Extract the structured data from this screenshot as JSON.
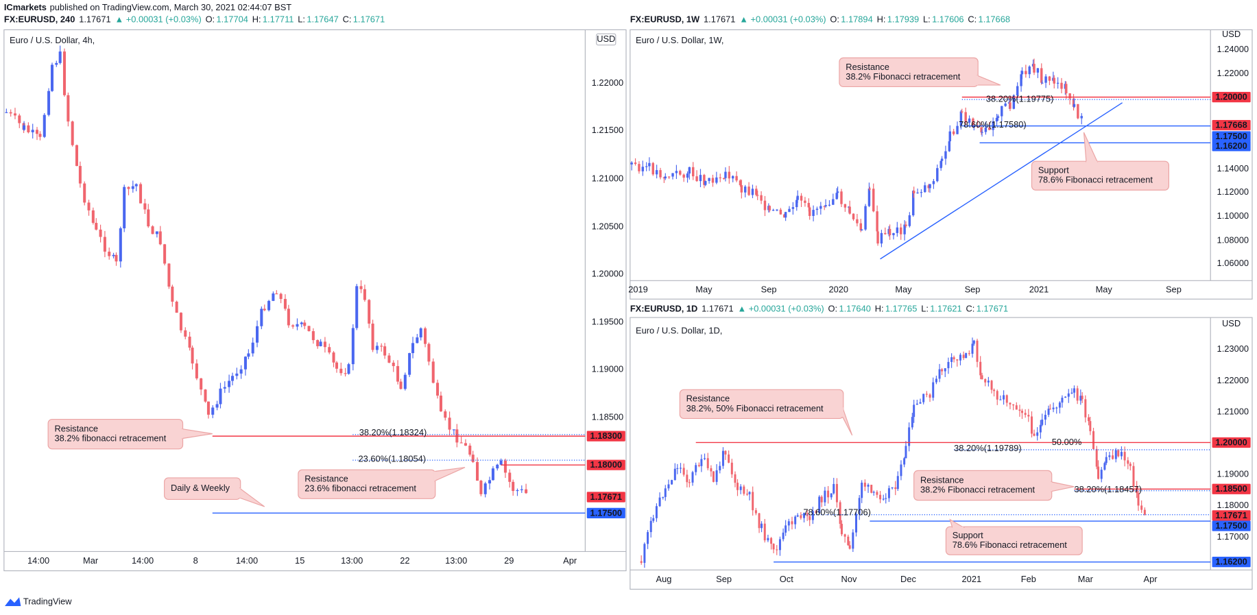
{
  "header": {
    "author": "ICmarkets",
    "text": "published on TradingView.com, March 30, 2021 02:44:07 BST"
  },
  "panels": [
    {
      "symbol": "FX:EURUSD, 240",
      "last": "1.17671",
      "change": "▲ +0.00031 (+0.03%)",
      "ohlc": [
        {
          "label": "O:",
          "value": "1.17704"
        },
        {
          "label": "H:",
          "value": "1.17711"
        },
        {
          "label": "L:",
          "value": "1.17647"
        },
        {
          "label": "C:",
          "value": "1.17671"
        }
      ],
      "title": "Euro / U.S. Dollar, 4h,",
      "currency": "USD",
      "price_ticks": [
        "1.22000",
        "1.21500",
        "1.21000",
        "1.20500",
        "1.20000",
        "1.19500",
        "1.19000",
        "1.18500"
      ],
      "time_ticks": [
        "14:00",
        "Mar",
        "14:00",
        "8",
        "14:00",
        "15",
        "13:00",
        "22",
        "13:00",
        "29",
        "Apr"
      ],
      "price_tags": [
        {
          "label": "1.18300",
          "color": "#f23645"
        },
        {
          "label": "1.18000",
          "color": "#f23645"
        },
        {
          "label": "1.17671",
          "color": "#f23645"
        },
        {
          "label": "1.17500",
          "color": "#2962ff"
        }
      ],
      "fib_labels": [
        "38.20%(1.18324)",
        "23.60%(1.18054)"
      ],
      "annotations": [
        {
          "lines": [
            "Resistance",
            "38.2% fibonacci retracement"
          ]
        },
        {
          "lines": [
            "Daily & Weekly"
          ]
        },
        {
          "lines": [
            "Resistance",
            "23.6% fibonacci retracement"
          ]
        }
      ]
    },
    {
      "symbol": "FX:EURUSD, 1W",
      "last": "1.17671",
      "change": "▲ +0.00031 (+0.03%)",
      "ohlc": [
        {
          "label": "O:",
          "value": "1.17894"
        },
        {
          "label": "H:",
          "value": "1.17939"
        },
        {
          "label": "L:",
          "value": "1.17606"
        },
        {
          "label": "C:",
          "value": "1.17668"
        }
      ],
      "title": "Euro / U.S. Dollar, 1W,",
      "currency": "USD",
      "price_ticks": [
        "1.24000",
        "1.22000",
        "1.14000",
        "1.12000",
        "1.10000",
        "1.08000",
        "1.06000"
      ],
      "time_ticks": [
        "2019",
        "May",
        "Sep",
        "2020",
        "May",
        "Sep",
        "2021",
        "May",
        "Sep"
      ],
      "price_tags": [
        {
          "label": "1.20000",
          "color": "#f23645"
        },
        {
          "label": "1.17668",
          "color": "#f23645"
        },
        {
          "label": "1.17500",
          "color": "#2962ff"
        },
        {
          "label": "1.16200",
          "color": "#2962ff"
        }
      ],
      "fib_labels": [
        "38.20%(1.19775)",
        "78.60%(1.17580)"
      ],
      "annotations": [
        {
          "lines": [
            "Resistance",
            "38.2% Fibonacci retracement"
          ]
        },
        {
          "lines": [
            "Support",
            "78.6% Fibonacci retracement"
          ]
        }
      ]
    },
    {
      "symbol": "FX:EURUSD, 1D",
      "last": "1.17671",
      "change": "▲ +0.00031 (+0.03%)",
      "ohlc": [
        {
          "label": "O:",
          "value": "1.17640"
        },
        {
          "label": "H:",
          "value": "1.17765"
        },
        {
          "label": "L:",
          "value": "1.17621"
        },
        {
          "label": "C:",
          "value": "1.17671"
        }
      ],
      "title": "Euro / U.S. Dollar, 1D,",
      "currency": "USD",
      "price_ticks": [
        "1.23000",
        "1.22000",
        "1.21000",
        "1.19000",
        "1.18000",
        "1.17000"
      ],
      "time_ticks": [
        "Aug",
        "Sep",
        "Oct",
        "Nov",
        "Dec",
        "2021",
        "Feb",
        "Mar",
        "Apr"
      ],
      "price_tags": [
        {
          "label": "1.20000",
          "color": "#f23645"
        },
        {
          "label": "1.18500",
          "color": "#f23645"
        },
        {
          "label": "1.17671",
          "color": "#f23645"
        },
        {
          "label": "1.17500",
          "color": "#2962ff"
        },
        {
          "label": "1.16200",
          "color": "#2962ff"
        }
      ],
      "fib_labels": [
        "38.20%(1.19789)",
        "50.00%",
        "38.20%(1.18457)",
        "78.60%(1.17706)"
      ],
      "annotations": [
        {
          "lines": [
            "Resistance",
            "38.2%, 50% Fibonacci retracement"
          ]
        },
        {
          "lines": [
            "Resistance",
            "38.2% Fibonacci retracement"
          ]
        },
        {
          "lines": [
            "Support",
            "78.6% Fibonacci retracement"
          ]
        }
      ]
    }
  ],
  "footer": "TradingView"
}
